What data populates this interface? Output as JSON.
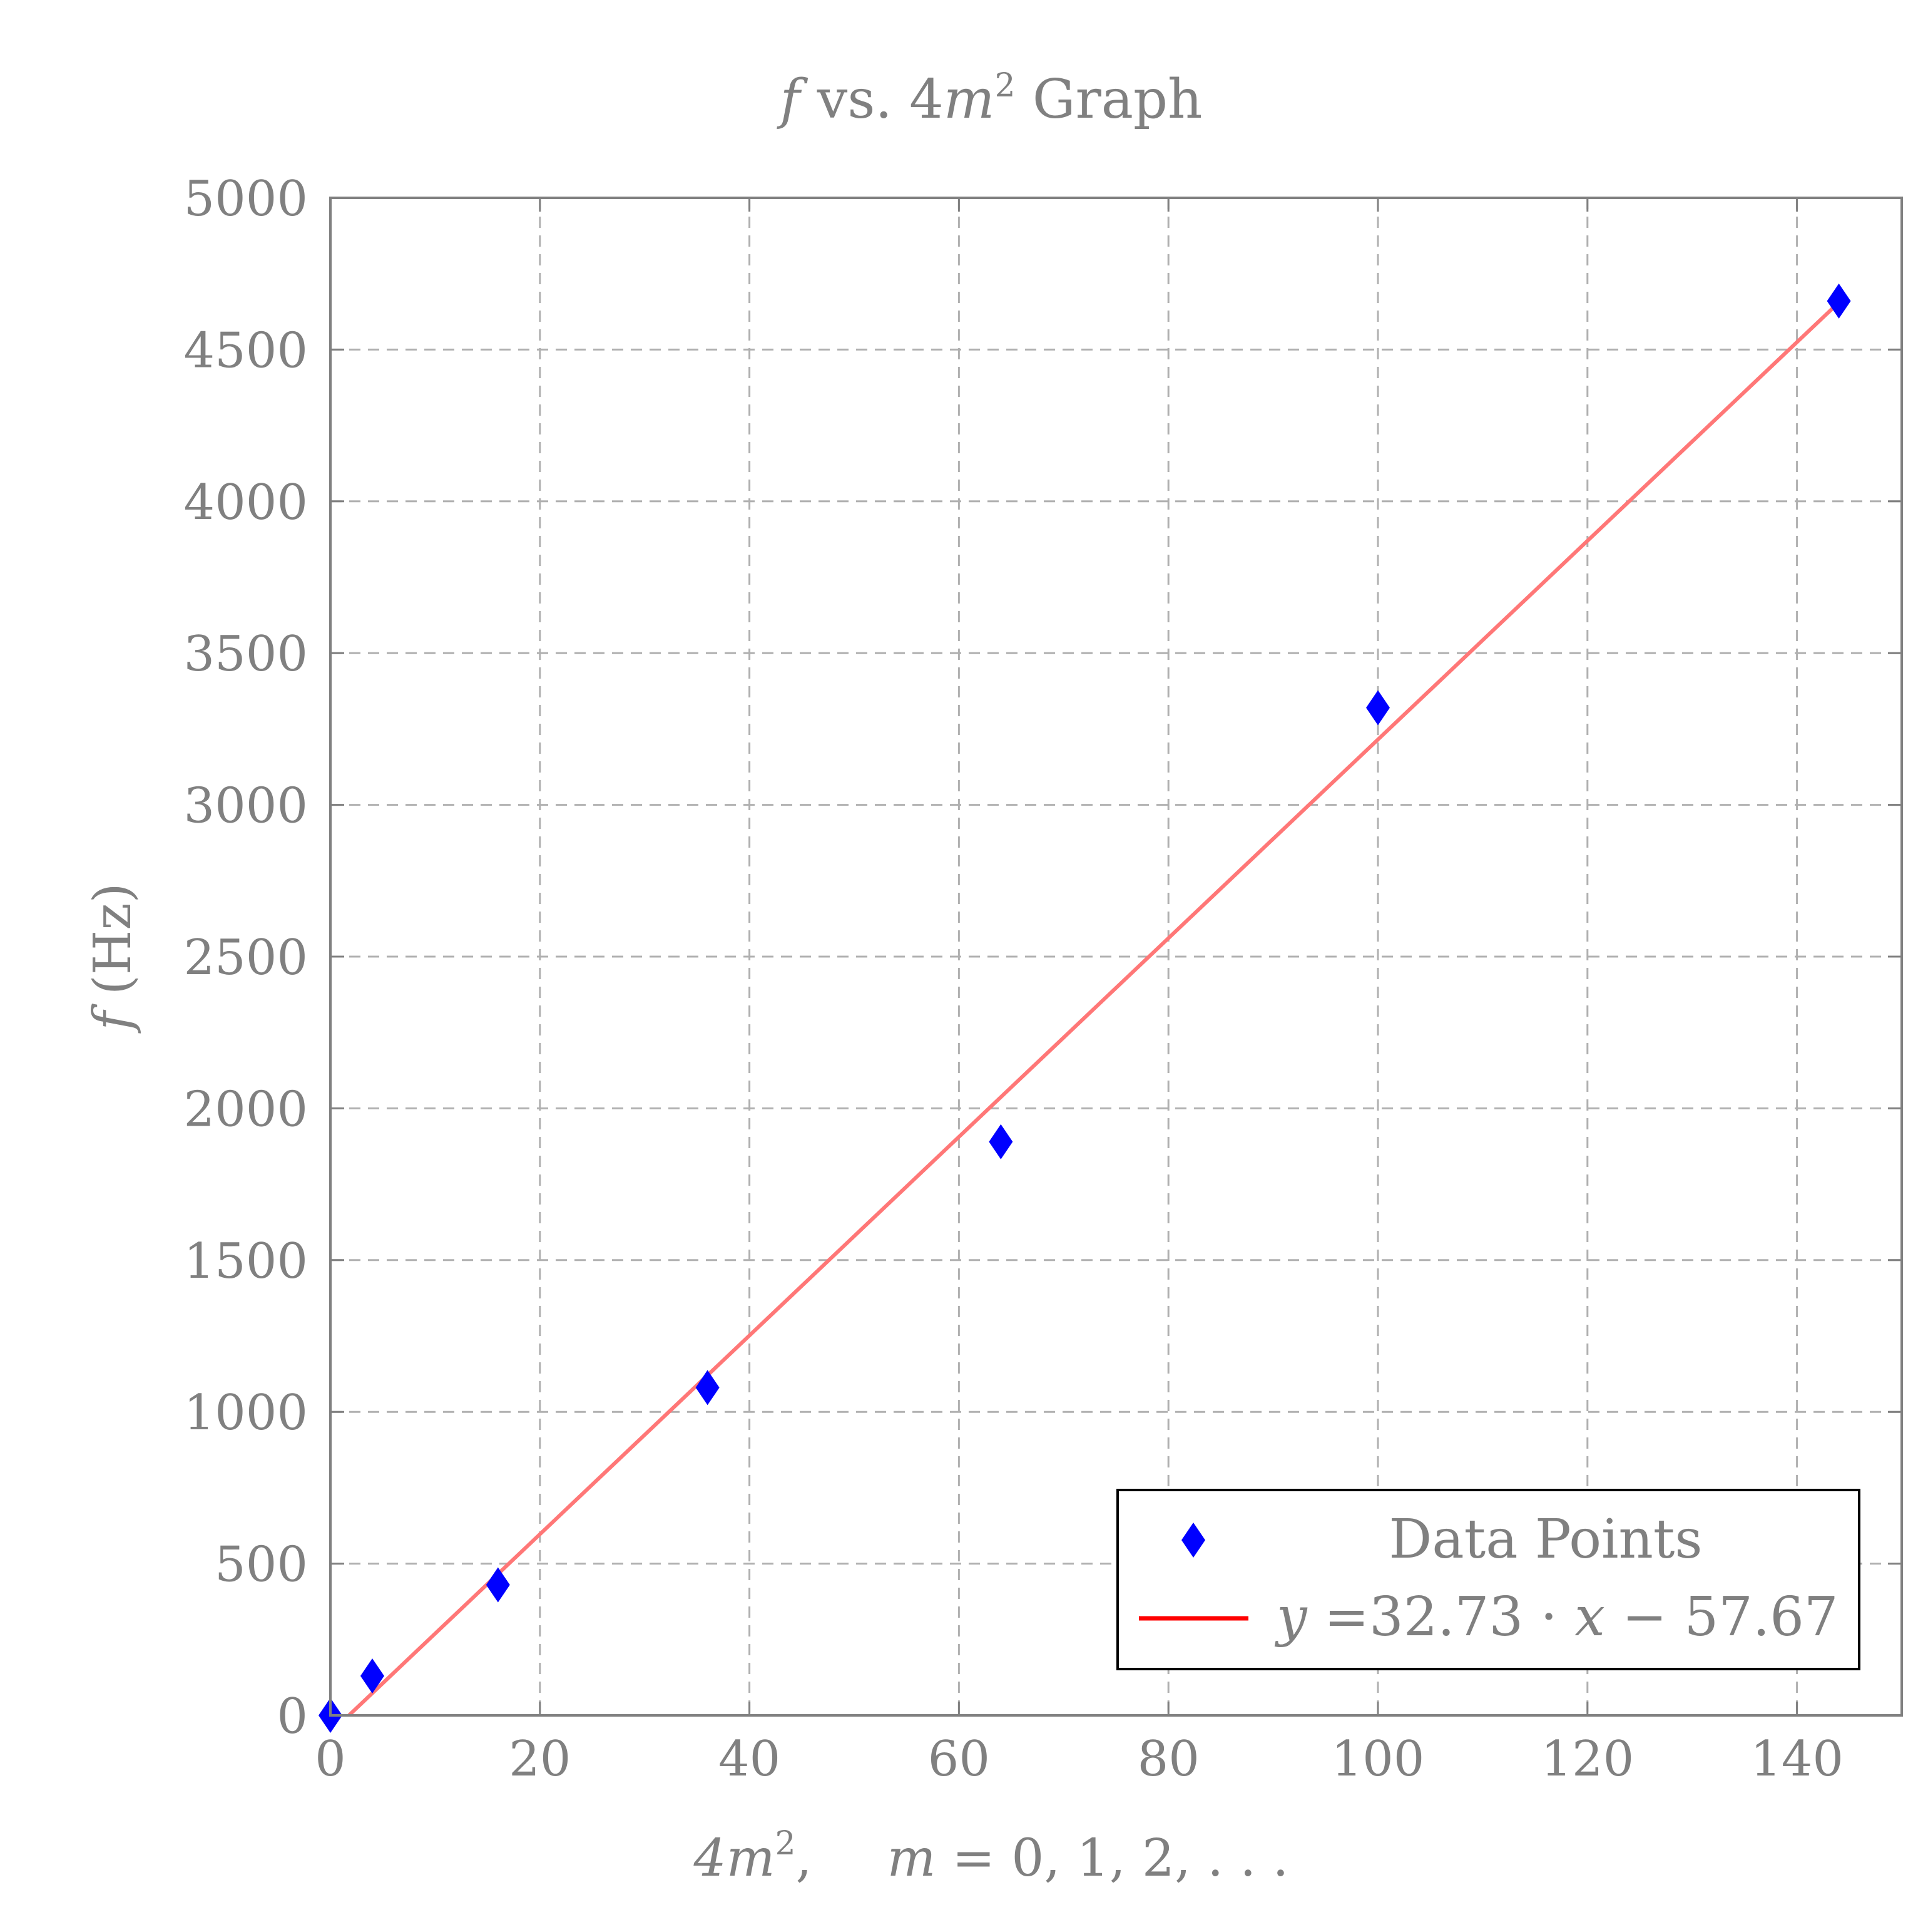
{
  "chart_data": {
    "type": "scatter",
    "title": {
      "var": "f",
      "mid": " vs. 4",
      "var2": "m",
      "sup": "2",
      "tail": " Graph"
    },
    "xlabel": {
      "p1": "4",
      "p2": "m",
      "sup": "2",
      "p3": ",",
      "p4": "m",
      "p5": " = 0, 1, 2, . . ."
    },
    "ylabel": {
      "var": "f",
      "unit": " (Hz)"
    },
    "xlim": [
      0,
      150
    ],
    "ylim": [
      0,
      5000
    ],
    "xticks": [
      0,
      20,
      40,
      60,
      80,
      100,
      120,
      140
    ],
    "yticks": [
      0,
      500,
      1000,
      1500,
      2000,
      2500,
      3000,
      3500,
      4000,
      4500,
      5000
    ],
    "grid": true,
    "legend_position": "bottom-right",
    "series": [
      {
        "name": "Data Points",
        "kind": "scatter",
        "marker": "diamond",
        "color": "#0000ff",
        "x": [
          0,
          4,
          16,
          36,
          64,
          100,
          144
        ],
        "y": [
          0,
          130,
          430,
          1080,
          1890,
          3320,
          4660
        ]
      },
      {
        "name": "y =32.73 · x − 57.67",
        "kind": "line",
        "color": "#ff7777",
        "legend_color": "#ff0000",
        "slope": 32.73,
        "intercept": -57.67,
        "x_range": [
          1.76,
          144
        ]
      }
    ],
    "legend": {
      "entry1": "Data Points",
      "entry2": {
        "v1": "y",
        "eq": " =32.73 · ",
        "v2": "x",
        "tail": " − 57.67"
      }
    }
  },
  "colors": {
    "axis": "#808080",
    "grid": "#b0b0b0",
    "text": "#808080",
    "marker": "#0000ff",
    "fit": "#ff7777"
  }
}
